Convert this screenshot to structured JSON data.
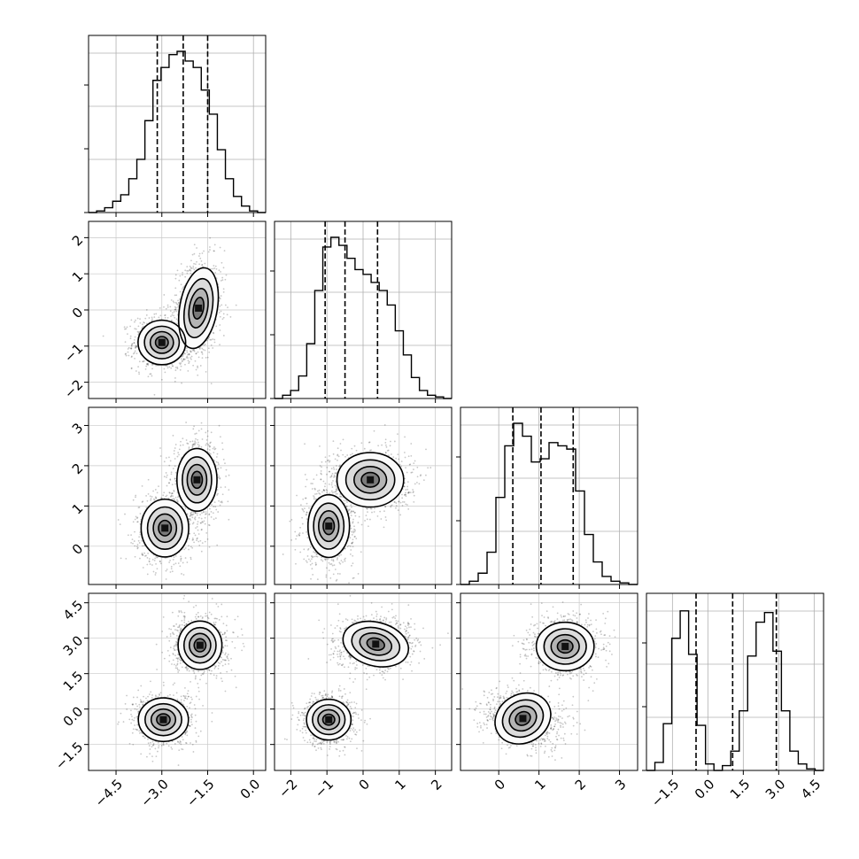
{
  "chart_data": {
    "type": "corner",
    "parameters": [
      {
        "index": 0,
        "lim": [
          -5.4,
          0.4
        ],
        "ticks": [
          -4.5,
          -3.0,
          -1.5,
          0.0
        ],
        "tick_labels": [
          "−4.5",
          "−3.0",
          "−1.5",
          "0.0"
        ],
        "quantiles": [
          -3.15,
          -2.3,
          -1.5
        ],
        "hist": [
          0,
          0.01,
          0.03,
          0.07,
          0.11,
          0.21,
          0.33,
          0.57,
          0.82,
          0.9,
          0.98,
          1.0,
          0.94,
          0.9,
          0.76,
          0.61,
          0.39,
          0.21,
          0.1,
          0.04,
          0.01,
          0
        ]
      },
      {
        "index": 1,
        "lim": [
          -2.45,
          2.45
        ],
        "ticks": [
          -2,
          -1,
          0,
          1,
          2
        ],
        "tick_labels": [
          "−2",
          "−1",
          "0",
          "1",
          "2"
        ],
        "quantiles": [
          -1.05,
          -0.5,
          0.4
        ],
        "hist": [
          0,
          0.02,
          0.05,
          0.14,
          0.34,
          0.67,
          0.94,
          1.0,
          0.95,
          0.87,
          0.8,
          0.77,
          0.72,
          0.67,
          0.58,
          0.42,
          0.27,
          0.13,
          0.05,
          0.02,
          0.01,
          0
        ]
      },
      {
        "index": 2,
        "lim": [
          -0.95,
          3.45
        ],
        "ticks": [
          0,
          1,
          2,
          3
        ],
        "tick_labels": [
          "0",
          "1",
          "2",
          "3"
        ],
        "quantiles": [
          0.35,
          1.05,
          1.85
        ],
        "hist": [
          0,
          0.02,
          0.07,
          0.2,
          0.54,
          0.86,
          1.0,
          0.92,
          0.76,
          0.78,
          0.88,
          0.86,
          0.84,
          0.58,
          0.31,
          0.14,
          0.05,
          0.02,
          0.01,
          0
        ]
      },
      {
        "index": 3,
        "lim": [
          -2.6,
          4.9
        ],
        "ticks": [
          -1.5,
          0.0,
          1.5,
          3.0,
          4.5
        ],
        "tick_labels": [
          "−1.5",
          "0.0",
          "1.5",
          "3.0",
          "4.5"
        ],
        "quantiles": [
          -0.5,
          1.05,
          2.9
        ],
        "hist": [
          0,
          0.05,
          0.29,
          0.82,
          0.99,
          0.72,
          0.28,
          0.04,
          0.0,
          0.03,
          0.12,
          0.37,
          0.71,
          0.92,
          0.98,
          0.74,
          0.37,
          0.12,
          0.04,
          0.01,
          0.0
        ]
      }
    ],
    "pairs": [
      {
        "x": 0,
        "y": 1,
        "modes": [
          {
            "mx": -3.0,
            "my": -0.9,
            "sx": 0.38,
            "sy": 0.3,
            "rot": 0
          },
          {
            "mx": -1.8,
            "my": 0.05,
            "sx": 0.3,
            "sy": 0.55,
            "rot": -10
          }
        ]
      },
      {
        "x": 0,
        "y": 2,
        "modes": [
          {
            "mx": -2.9,
            "my": 0.45,
            "sx": 0.38,
            "sy": 0.35,
            "rot": 0
          },
          {
            "mx": -1.85,
            "my": 1.65,
            "sx": 0.32,
            "sy": 0.38,
            "rot": 0
          }
        ]
      },
      {
        "x": 1,
        "y": 2,
        "modes": [
          {
            "mx": -0.95,
            "my": 0.5,
            "sx": 0.28,
            "sy": 0.38,
            "rot": 0
          },
          {
            "mx": 0.2,
            "my": 1.65,
            "sx": 0.45,
            "sy": 0.33,
            "rot": 0
          }
        ]
      },
      {
        "x": 0,
        "y": 3,
        "modes": [
          {
            "mx": -2.95,
            "my": -0.45,
            "sx": 0.4,
            "sy": 0.45,
            "rot": 0
          },
          {
            "mx": -1.75,
            "my": 2.7,
            "sx": 0.35,
            "sy": 0.5,
            "rot": 0
          }
        ]
      },
      {
        "x": 1,
        "y": 3,
        "modes": [
          {
            "mx": -0.95,
            "my": -0.45,
            "sx": 0.3,
            "sy": 0.42,
            "rot": 0
          },
          {
            "mx": 0.35,
            "my": 2.75,
            "sx": 0.45,
            "sy": 0.45,
            "rot": -15
          }
        ]
      },
      {
        "x": 2,
        "y": 3,
        "modes": [
          {
            "mx": 0.6,
            "my": -0.4,
            "sx": 0.35,
            "sy": 0.5,
            "rot": 30
          },
          {
            "mx": 1.65,
            "my": 2.65,
            "sx": 0.35,
            "sy": 0.5,
            "rot": 0
          }
        ]
      }
    ],
    "grid": true,
    "contour_levels": 4
  }
}
